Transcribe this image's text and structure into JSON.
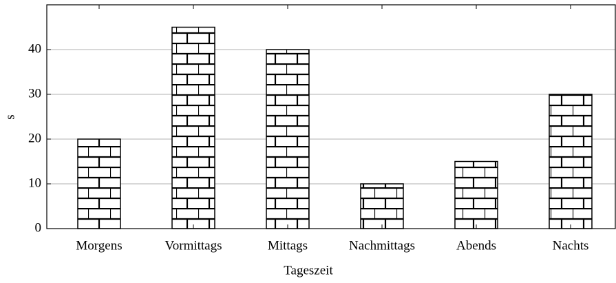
{
  "chart_data": {
    "type": "bar",
    "categories": [
      "Morgens",
      "Vormittags",
      "Mittags",
      "Nachmittags",
      "Abends",
      "Nachts"
    ],
    "values": [
      20,
      45,
      40,
      10,
      15,
      30
    ],
    "color": "#000000",
    "xlabel": "Tageszeit",
    "ylabel": "s",
    "ylim": [
      0,
      50
    ],
    "yticks": [
      0,
      10,
      20,
      30,
      40
    ],
    "grid": true
  }
}
